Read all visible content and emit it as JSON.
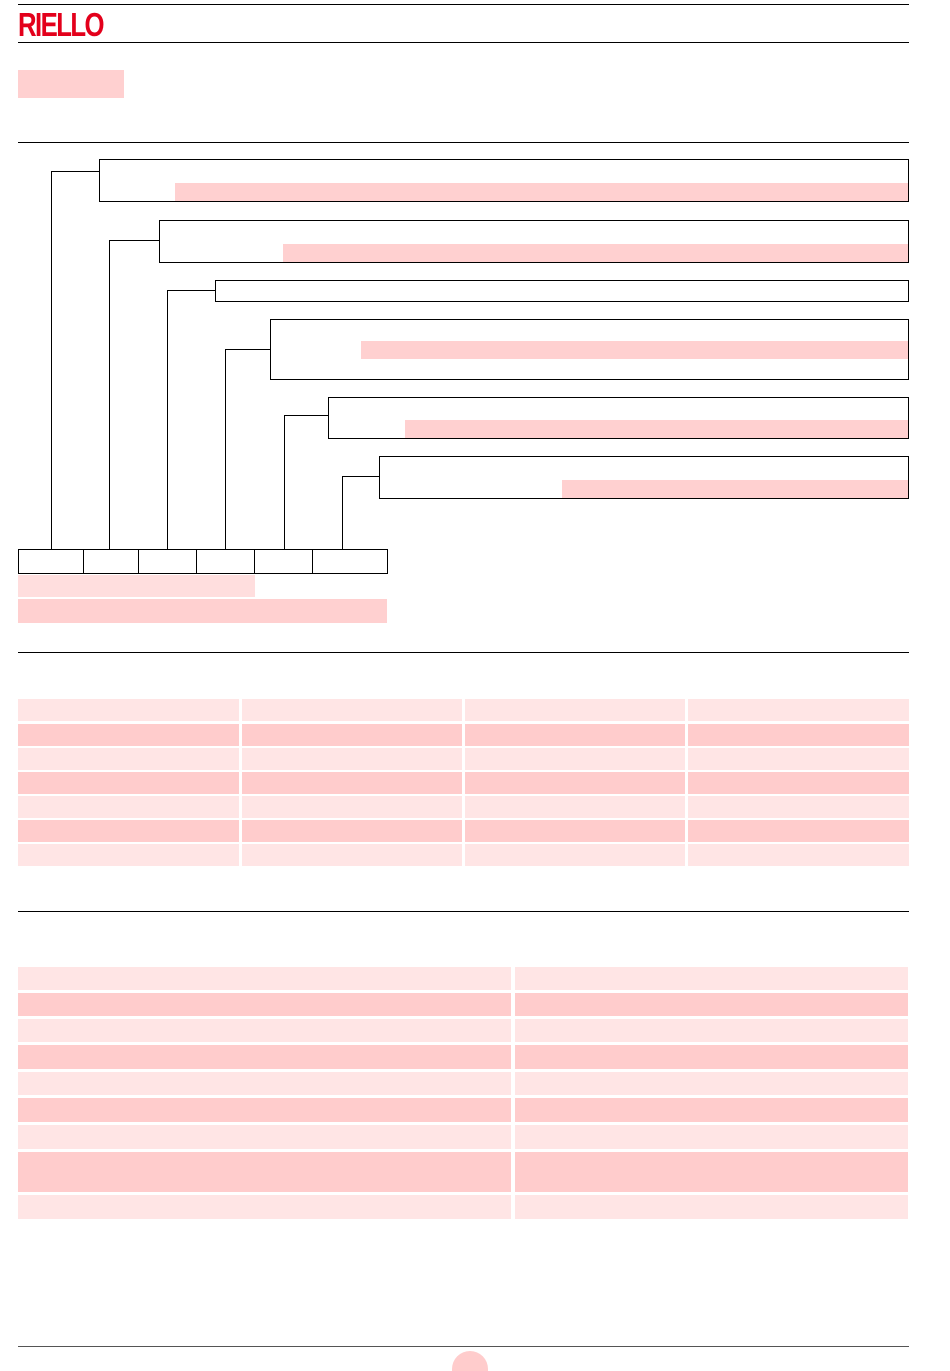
{
  "header": {
    "brand": "RIELLO",
    "brand_color": "#e3001b"
  },
  "highlight_color": "#ffd0d0",
  "sections": [
    {
      "name": "designation-diagram",
      "text_present": false
    },
    {
      "name": "table-1",
      "columns": 4,
      "rows": 7,
      "text_present": false
    },
    {
      "name": "table-2",
      "columns": 2,
      "rows": 9,
      "text_present": false
    }
  ]
}
